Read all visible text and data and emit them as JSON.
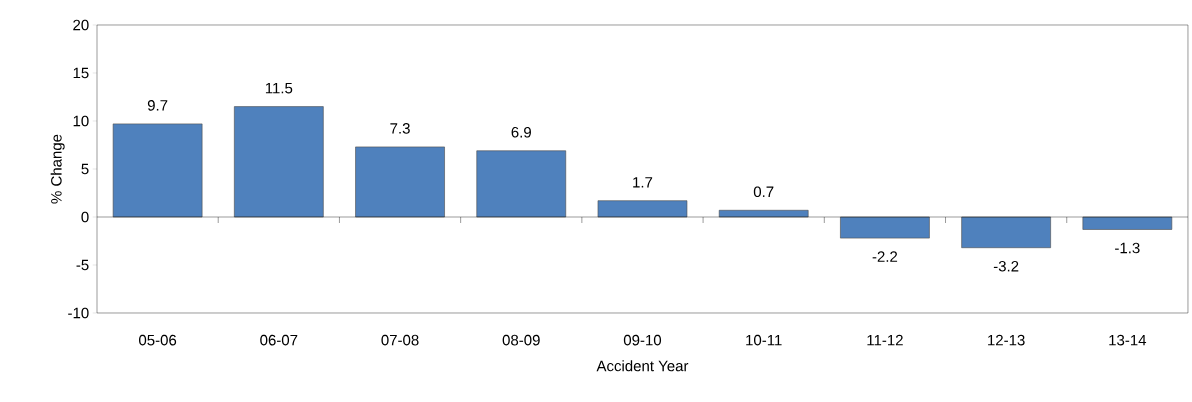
{
  "chart_data": {
    "type": "bar",
    "xlabel": "Accident Year",
    "ylabel": "% Change",
    "categories": [
      "05-06",
      "06-07",
      "07-08",
      "08-09",
      "09-10",
      "10-11",
      "11-12",
      "12-13",
      "13-14"
    ],
    "values": [
      9.7,
      11.5,
      7.3,
      6.9,
      1.7,
      0.7,
      -2.2,
      -3.2,
      -1.3
    ],
    "color": "#4f81bd",
    "data_labels": true,
    "ylim": [
      -10,
      20
    ],
    "yticks": [
      -10,
      -5,
      0,
      5,
      10,
      15,
      20
    ]
  }
}
